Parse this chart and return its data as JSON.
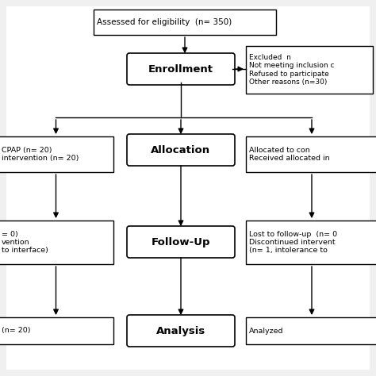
{
  "bg_color": "#f0f0f0",
  "chart_bg": "#ffffff",
  "box_edge_color": "#000000",
  "arrow_color": "#000000",
  "font_color": "#000000",
  "eligibility_text": "Assessed for eligibility  (n= 350)",
  "enrollment_text": "Enrollment",
  "excluded_text": "Excluded  n\nNot meeting inclusion c\nRefused to participate\nOther reasons (n=30)",
  "alloc_left_text": "CPAP (n= 20)\nintervention (n= 20)",
  "allocation_text": "Allocation",
  "alloc_right_text": "Allocated to con\nReceived allocated in",
  "fol_left_text": "= 0)\nvention\nto interface)",
  "followup_text": "Follow-Up",
  "fol_right_text": "Lost to follow-up  (n= 0\nDiscontinued intervent\n(n= 1, intolerance to",
  "anal_left_text": "(n= 20)",
  "analysis_text": "Analysis",
  "anal_right_text": "Analyzed",
  "fig_w": 4.74,
  "fig_h": 4.74,
  "dpi": 100
}
